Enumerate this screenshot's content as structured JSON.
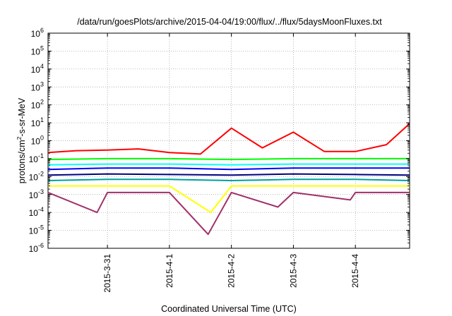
{
  "chart_data": {
    "type": "line",
    "title": "/data/run/goesPlots/archive/2015-04-04/19:00/flux/../flux/5daysMoonFluxes.txt",
    "xlabel": "Coordinated Universal Time (UTC)",
    "ylabel_parts": {
      "base": "protons/cm",
      "sup": "2",
      "rest": "-s-sr-MeV"
    },
    "yscale": "log",
    "ylim": [
      1e-06,
      1000000.0
    ],
    "y_ticks": [
      {
        "value": 1e-06,
        "base": "10",
        "exp": "-6"
      },
      {
        "value": 1e-05,
        "base": "10",
        "exp": "-5"
      },
      {
        "value": 0.0001,
        "base": "10",
        "exp": "-4"
      },
      {
        "value": 0.001,
        "base": "10",
        "exp": "-3"
      },
      {
        "value": 0.01,
        "base": "10",
        "exp": "-2"
      },
      {
        "value": 0.1,
        "base": "10",
        "exp": "-1"
      },
      {
        "value": 1.0,
        "base": "10",
        "exp": "0"
      },
      {
        "value": 10.0,
        "base": "10",
        "exp": "1"
      },
      {
        "value": 100.0,
        "base": "10",
        "exp": "2"
      },
      {
        "value": 1000.0,
        "base": "10",
        "exp": "3"
      },
      {
        "value": 10000.0,
        "base": "10",
        "exp": "4"
      },
      {
        "value": 100000.0,
        "base": "10",
        "exp": "5"
      },
      {
        "value": 1000000.0,
        "base": "10",
        "exp": "6"
      }
    ],
    "xlim": [
      "2015-03-30 01:00",
      "2015-04-04 21:00"
    ],
    "x_ticks": [
      {
        "value": "2015-03-31 00:00",
        "label": "2015-3-31"
      },
      {
        "value": "2015-04-01 00:00",
        "label": "2015-4-1"
      },
      {
        "value": "2015-04-02 00:00",
        "label": "2015-4-2"
      },
      {
        "value": "2015-04-03 00:00",
        "label": "2015-4-3"
      },
      {
        "value": "2015-04-04 00:00",
        "label": "2015-4-4"
      }
    ],
    "grid": true,
    "legend": "none",
    "series": [
      {
        "color": "#ff0000",
        "x": [
          "2015-03-30 01:00",
          "2015-03-30 12:00",
          "2015-03-31 00:00",
          "2015-03-31 12:00",
          "2015-04-01 00:00",
          "2015-04-01 12:00",
          "2015-04-02 00:00",
          "2015-04-02 12:00",
          "2015-04-03 00:00",
          "2015-04-03 12:00",
          "2015-04-04 00:00",
          "2015-04-04 12:00",
          "2015-04-04 21:00"
        ],
        "values": [
          0.22,
          0.28,
          0.3,
          0.35,
          0.22,
          0.18,
          5,
          0.4,
          3,
          0.25,
          0.25,
          0.6,
          9
        ]
      },
      {
        "color": "#00ff00",
        "x": [
          "2015-03-30 01:00",
          "2015-03-31 00:00",
          "2015-04-01 00:00",
          "2015-04-02 00:00",
          "2015-04-03 00:00",
          "2015-04-04 00:00",
          "2015-04-04 21:00"
        ],
        "values": [
          0.09,
          0.1,
          0.1,
          0.09,
          0.1,
          0.1,
          0.1
        ]
      },
      {
        "color": "#00ffff",
        "x": [
          "2015-03-30 01:00",
          "2015-03-31 00:00",
          "2015-04-01 00:00",
          "2015-04-02 00:00",
          "2015-04-03 00:00",
          "2015-04-04 00:00",
          "2015-04-04 21:00"
        ],
        "values": [
          0.045,
          0.05,
          0.05,
          0.045,
          0.05,
          0.05,
          0.05
        ]
      },
      {
        "color": "#0000ff",
        "x": [
          "2015-03-30 01:00",
          "2015-03-31 00:00",
          "2015-04-01 00:00",
          "2015-04-02 00:00",
          "2015-04-03 00:00",
          "2015-04-04 00:00",
          "2015-04-04 21:00"
        ],
        "values": [
          0.025,
          0.03,
          0.03,
          0.025,
          0.03,
          0.03,
          0.03
        ]
      },
      {
        "color": "#000080",
        "x": [
          "2015-03-30 01:00",
          "2015-03-31 00:00",
          "2015-04-01 00:00",
          "2015-04-02 00:00",
          "2015-04-03 00:00",
          "2015-04-04 00:00",
          "2015-04-04 21:00"
        ],
        "values": [
          0.012,
          0.014,
          0.013,
          0.012,
          0.014,
          0.013,
          0.012
        ]
      },
      {
        "color": "#00a0a0",
        "x": [
          "2015-03-30 01:00",
          "2015-03-31 00:00",
          "2015-04-01 00:00",
          "2015-04-02 00:00",
          "2015-04-03 00:00",
          "2015-04-04 00:00",
          "2015-04-04 21:00"
        ],
        "values": [
          0.006,
          0.007,
          0.007,
          0.006,
          0.007,
          0.007,
          0.006
        ]
      },
      {
        "color": "#ffff00",
        "x": [
          "2015-03-30 01:00",
          "2015-03-31 00:00",
          "2015-04-01 00:00",
          "2015-04-01 16:00",
          "2015-04-02 00:00",
          "2015-04-03 00:00",
          "2015-04-04 00:00",
          "2015-04-04 21:00"
        ],
        "values": [
          0.003,
          0.003,
          0.003,
          0.0001,
          0.003,
          0.003,
          0.003,
          0.003
        ]
      },
      {
        "color": "#a0306a",
        "x": [
          "2015-03-30 01:00",
          "2015-03-30 20:00",
          "2015-03-31 00:00",
          "2015-04-01 00:00",
          "2015-04-01 15:00",
          "2015-04-02 00:00",
          "2015-04-02 18:00",
          "2015-04-03 00:00",
          "2015-04-03 22:00",
          "2015-04-04 00:00",
          "2015-04-04 21:00"
        ],
        "values": [
          0.0013,
          0.0001,
          0.0013,
          0.0013,
          6e-06,
          0.0013,
          0.0002,
          0.0013,
          0.0005,
          0.0013,
          0.0013
        ]
      }
    ]
  }
}
